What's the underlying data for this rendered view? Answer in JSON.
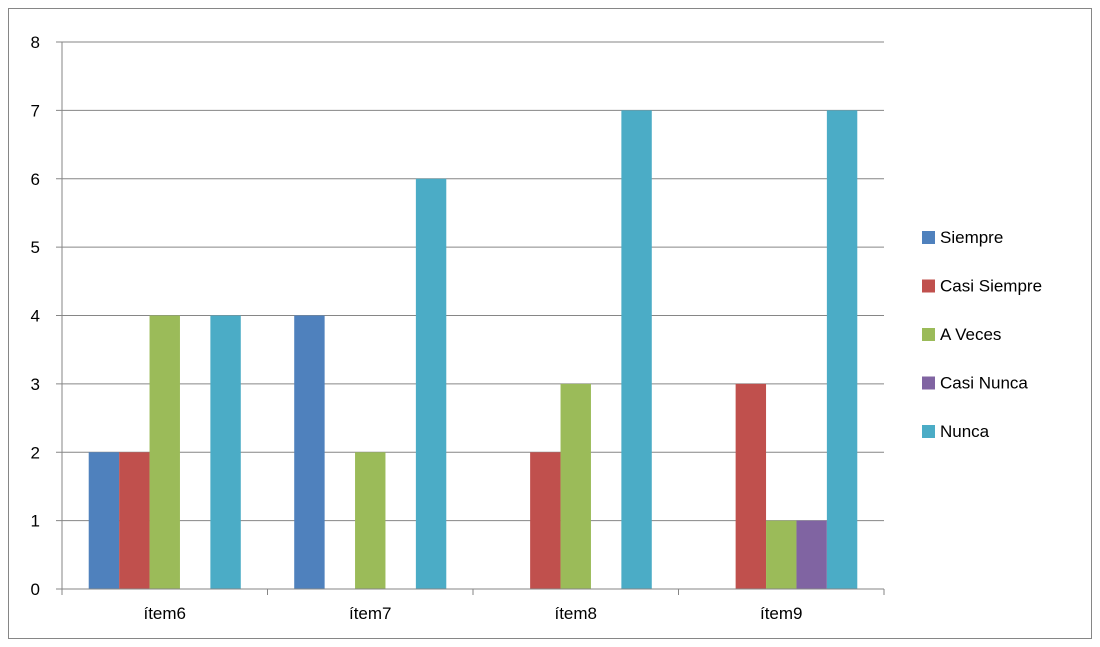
{
  "chart_data": {
    "type": "bar",
    "categories": [
      "ítem6",
      "ítem7",
      "ítem8",
      "ítem9"
    ],
    "series": [
      {
        "name": "Siempre",
        "values": [
          2,
          4,
          0,
          0
        ],
        "color": "#4F81BD"
      },
      {
        "name": "Casi Siempre",
        "values": [
          2,
          0,
          2,
          3
        ],
        "color": "#C0504D"
      },
      {
        "name": "A Veces",
        "values": [
          4,
          2,
          3,
          1
        ],
        "color": "#9BBB59"
      },
      {
        "name": "Casi Nunca",
        "values": [
          0,
          0,
          0,
          1
        ],
        "color": "#8064A2"
      },
      {
        "name": "Nunca",
        "values": [
          4,
          6,
          7,
          7
        ],
        "color": "#4BACC6"
      }
    ],
    "title": "",
    "xlabel": "",
    "ylabel": "",
    "ylim": [
      0,
      8
    ],
    "yticks": [
      0,
      1,
      2,
      3,
      4,
      5,
      6,
      7,
      8
    ],
    "grid": true,
    "legend_position": "right"
  }
}
